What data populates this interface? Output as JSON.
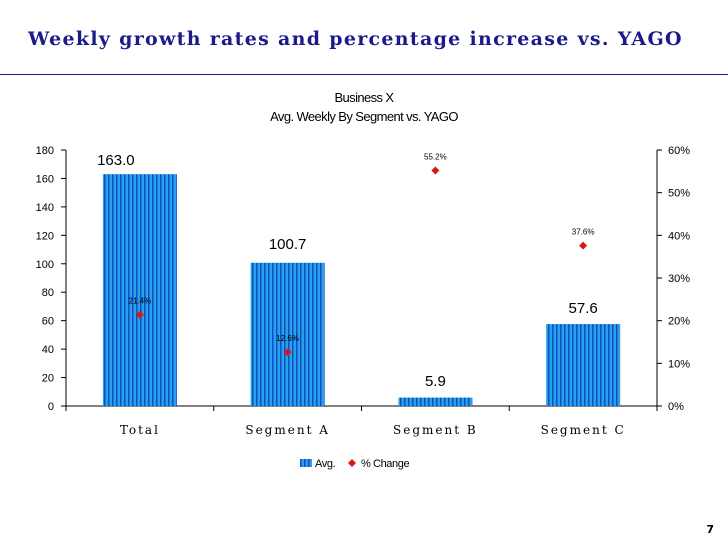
{
  "slide": {
    "title": "Weekly growth rates and percentage increase vs. YAGO",
    "page_number": "7"
  },
  "colors": {
    "title": "#1a1a8c",
    "chart_title": "#1a1aa8",
    "bar_fill": "#2aa0e8",
    "bar_stripe": "#0a50c8",
    "marker": "#d81818"
  },
  "chart_data": {
    "type": "bar",
    "title": "Business X",
    "subtitle": "Avg. Weekly By Segment vs. YAGO",
    "categories": [
      "Total",
      "Segment A",
      "Segment B",
      "Segment C"
    ],
    "series": [
      {
        "name": "Avg.",
        "type": "bar",
        "axis": "left",
        "values": [
          163.0,
          100.7,
          5.9,
          57.6
        ],
        "labels": [
          "163.0",
          "100.7",
          "5.9",
          "57.6"
        ]
      },
      {
        "name": "% Change",
        "type": "scatter",
        "axis": "right",
        "values": [
          21.4,
          12.6,
          55.2,
          37.6
        ],
        "labels": [
          "21.4%",
          "12.6%",
          "55.2%",
          "37.6%"
        ]
      }
    ],
    "y_left": {
      "min": 0,
      "max": 180,
      "ticks": [
        0,
        20,
        40,
        60,
        80,
        100,
        120,
        140,
        160,
        180
      ],
      "tick_labels": [
        "0",
        "20",
        "40",
        "60",
        "80",
        "100",
        "120",
        "140",
        "160",
        "180"
      ]
    },
    "y_right": {
      "min": 0,
      "max": 60,
      "ticks": [
        0,
        10,
        20,
        30,
        40,
        50,
        60
      ],
      "tick_labels": [
        "0%",
        "10%",
        "20%",
        "30%",
        "40%",
        "50%",
        "60%"
      ]
    },
    "grid": false,
    "legend_position": "bottom"
  }
}
